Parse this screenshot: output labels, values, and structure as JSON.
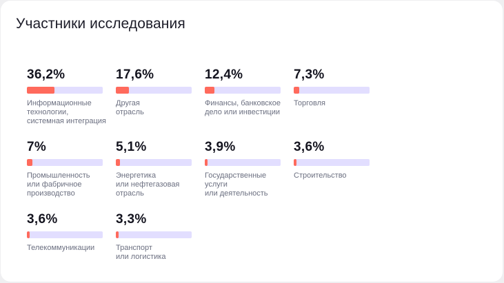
{
  "card": {
    "title": "Участники исследования"
  },
  "colors": {
    "fill": "#ff6a5c",
    "track": "#e2deff",
    "value_text": "#14141f",
    "label_text": "#6b6f80"
  },
  "chart_data": {
    "type": "bar",
    "title": "Участники исследования",
    "ylim": [
      0,
      100
    ],
    "unit": "%",
    "categories": [
      "Информационные технологии, системная интеграция",
      "Другая отрасль",
      "Финансы, банковское дело или инвестиции",
      "Торговля",
      "Промышленность или фабричное производство",
      "Энергетика или нефтегазовая отрасль",
      "Государственные услуги или деятельность",
      "Строительство",
      "Телекоммуникации",
      "Транспорт или логистика"
    ],
    "values": [
      36.2,
      17.6,
      12.4,
      7.3,
      7,
      5.1,
      3.9,
      3.6,
      3.6,
      3.3
    ],
    "items": [
      {
        "value": 36.2,
        "value_label": "36,2%",
        "label_lines": [
          "Информационные",
          "технологии,",
          "системная интеграция"
        ]
      },
      {
        "value": 17.6,
        "value_label": "17,6%",
        "label_lines": [
          "Другая",
          "отрасль"
        ]
      },
      {
        "value": 12.4,
        "value_label": "12,4%",
        "label_lines": [
          "Финансы, банковское",
          "дело или инвестиции"
        ]
      },
      {
        "value": 7.3,
        "value_label": "7,3%",
        "label_lines": [
          "Торговля"
        ]
      },
      {
        "value": 7,
        "value_label": "7%",
        "label_lines": [
          "Промышленность",
          "или фабричное",
          "производство"
        ]
      },
      {
        "value": 5.1,
        "value_label": "5,1%",
        "label_lines": [
          "Энергетика",
          "или нефтегазовая",
          "отрасль"
        ]
      },
      {
        "value": 3.9,
        "value_label": "3,9%",
        "label_lines": [
          "Государственные",
          "услуги",
          "или деятельность"
        ]
      },
      {
        "value": 3.6,
        "value_label": "3,6%",
        "label_lines": [
          "Строительство"
        ]
      },
      {
        "value": 3.6,
        "value_label": "3,6%",
        "label_lines": [
          "Телекоммуникации"
        ]
      },
      {
        "value": 3.3,
        "value_label": "3,3%",
        "label_lines": [
          "Транспорт",
          "или логистика"
        ]
      }
    ]
  }
}
